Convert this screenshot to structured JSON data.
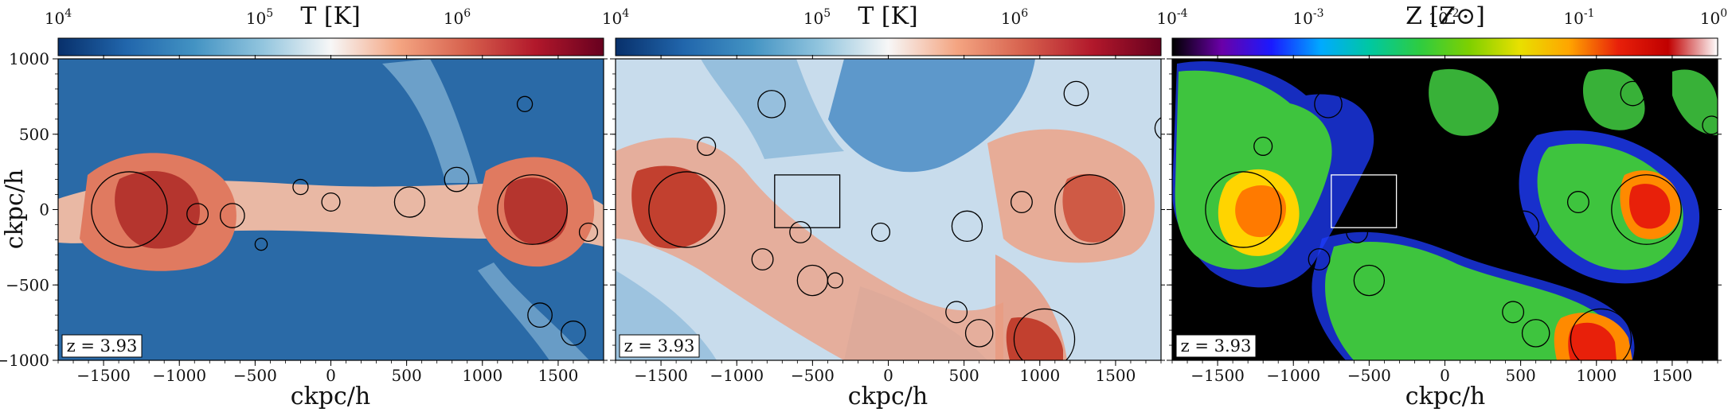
{
  "chart_data": [
    {
      "type": "heatmap",
      "field": "temperature",
      "colorbar": {
        "label": "T [K]",
        "scale": "log",
        "range": [
          10000,
          10000000
        ],
        "ticks": [
          "10^4",
          "10^5",
          "10^6"
        ],
        "colors": [
          "#08306b",
          "#2166ac",
          "#4393c3",
          "#92c5de",
          "#f7f7f7",
          "#f4a582",
          "#d6604d",
          "#b2182b",
          "#67001f"
        ]
      },
      "xlabel": "ckpc/h",
      "ylabel": "ckpc/h",
      "xlim": [
        -1800,
        1800
      ],
      "ylim": [
        -1000,
        1000
      ],
      "xticks": [
        -1500,
        -1000,
        -500,
        0,
        500,
        1000,
        1500
      ],
      "yticks": [
        -1000,
        -500,
        0,
        500,
        1000
      ],
      "annotation": "z = 3.93",
      "halos": [
        {
          "x": -1330,
          "y": 0,
          "r": 250
        },
        {
          "x": 1330,
          "y": 0,
          "r": 230
        },
        {
          "x": 520,
          "y": 50,
          "r": 100
        },
        {
          "x": -880,
          "y": -30,
          "r": 70
        },
        {
          "x": -650,
          "y": -40,
          "r": 80
        },
        {
          "x": -460,
          "y": -230,
          "r": 40
        },
        {
          "x": 830,
          "y": 200,
          "r": 80
        },
        {
          "x": 1280,
          "y": 700,
          "r": 50
        },
        {
          "x": 1380,
          "y": -700,
          "r": 80
        },
        {
          "x": 1600,
          "y": -820,
          "r": 80
        },
        {
          "x": 1700,
          "y": -150,
          "r": 60
        },
        {
          "x": 0,
          "y": 50,
          "r": 60
        },
        {
          "x": -200,
          "y": 150,
          "r": 50
        }
      ]
    },
    {
      "type": "heatmap",
      "field": "temperature",
      "colorbar": {
        "label": "T [K]",
        "scale": "log",
        "range": [
          10000,
          10000000
        ],
        "ticks": [
          "10^5",
          "10^6"
        ],
        "colors": [
          "#08306b",
          "#2166ac",
          "#4393c3",
          "#92c5de",
          "#f7f7f7",
          "#f4a582",
          "#d6604d",
          "#b2182b",
          "#67001f"
        ]
      },
      "xlabel": "ckpc/h",
      "xlim": [
        -1800,
        1800
      ],
      "ylim": [
        -1000,
        1000
      ],
      "xticks": [
        -1500,
        -1000,
        -500,
        0,
        500,
        1000,
        1500
      ],
      "annotation": "z = 3.93",
      "box": {
        "x0": -750,
        "x1": -320,
        "y0": -120,
        "y1": 230
      },
      "halos": [
        {
          "x": -1330,
          "y": 0,
          "r": 250
        },
        {
          "x": 1330,
          "y": 0,
          "r": 230
        },
        {
          "x": 1030,
          "y": -860,
          "r": 200
        },
        {
          "x": 520,
          "y": -110,
          "r": 100
        },
        {
          "x": -500,
          "y": -470,
          "r": 100
        },
        {
          "x": -830,
          "y": -330,
          "r": 70
        },
        {
          "x": -350,
          "y": -470,
          "r": 50
        },
        {
          "x": 600,
          "y": -820,
          "r": 90
        },
        {
          "x": 450,
          "y": -680,
          "r": 70
        },
        {
          "x": -770,
          "y": 700,
          "r": 90
        },
        {
          "x": -1200,
          "y": 420,
          "r": 60
        },
        {
          "x": 880,
          "y": 50,
          "r": 70
        },
        {
          "x": 1240,
          "y": 770,
          "r": 80
        },
        {
          "x": 1840,
          "y": 540,
          "r": 80
        },
        {
          "x": -580,
          "y": -150,
          "r": 70
        },
        {
          "x": -50,
          "y": -150,
          "r": 60
        }
      ]
    },
    {
      "type": "heatmap",
      "field": "metallicity",
      "colorbar": {
        "label": "Z [Z⊙]",
        "scale": "log",
        "range": [
          0.0001,
          1
        ],
        "ticks": [
          "10^-4",
          "10^-3",
          "10^-2",
          "10^-1",
          "10^0"
        ],
        "colors": [
          "#000000",
          "#6a00a8",
          "#1a1aff",
          "#00aaff",
          "#00c8a0",
          "#2ecc40",
          "#7fd000",
          "#e8e000",
          "#ffa500",
          "#e8200a",
          "#c00000",
          "#ffffff"
        ]
      },
      "xlabel": "ckpc/h",
      "xlim": [
        -1800,
        1800
      ],
      "ylim": [
        -1000,
        1000
      ],
      "xticks": [
        -1500,
        -1000,
        -500,
        0,
        500,
        1000,
        1500
      ],
      "annotation": "z = 3.93",
      "box": {
        "x0": -750,
        "x1": -320,
        "y0": -120,
        "y1": 230
      },
      "halos": [
        {
          "x": -1330,
          "y": 0,
          "r": 250
        },
        {
          "x": 1330,
          "y": 0,
          "r": 230
        },
        {
          "x": 1030,
          "y": -860,
          "r": 200
        },
        {
          "x": 520,
          "y": -110,
          "r": 100
        },
        {
          "x": -500,
          "y": -470,
          "r": 100
        },
        {
          "x": -830,
          "y": -330,
          "r": 70
        },
        {
          "x": 600,
          "y": -820,
          "r": 90
        },
        {
          "x": 450,
          "y": -680,
          "r": 70
        },
        {
          "x": -770,
          "y": 700,
          "r": 90
        },
        {
          "x": -1200,
          "y": 420,
          "r": 60
        },
        {
          "x": 880,
          "y": 50,
          "r": 70
        },
        {
          "x": 1240,
          "y": 770,
          "r": 80
        },
        {
          "x": 1760,
          "y": 560,
          "r": 60
        },
        {
          "x": -580,
          "y": -150,
          "r": 70
        },
        {
          "x": -50,
          "y": -150,
          "r": 60
        }
      ]
    }
  ]
}
